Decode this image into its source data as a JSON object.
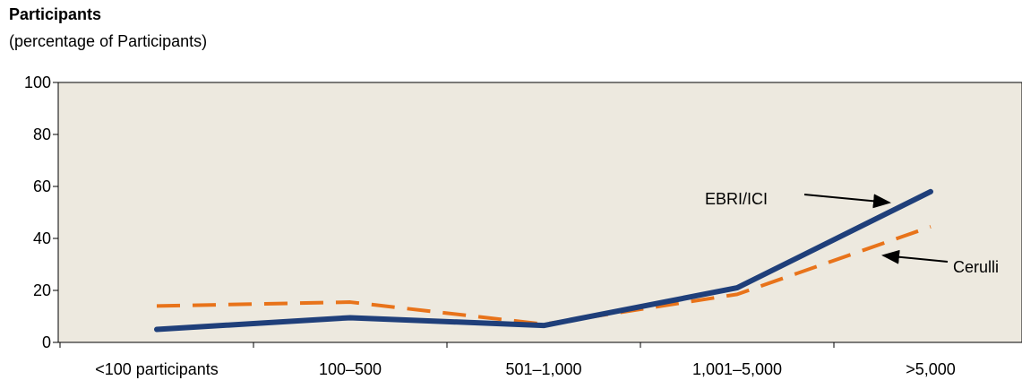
{
  "chart_data": {
    "type": "line",
    "title": "Participants",
    "subtitle": "(percentage of Participants)",
    "xlabel": "",
    "ylabel": "",
    "categories": [
      "<100 participants",
      "100–500",
      "501–1,000",
      "1,001–5,000",
      ">5,000"
    ],
    "ylim": [
      0,
      100
    ],
    "yticks": [
      "0",
      "20",
      "40",
      "60",
      "80",
      "100"
    ],
    "grid": false,
    "series": [
      {
        "name": "EBRI/ICI",
        "values": [
          5,
          9.5,
          6.5,
          21,
          58
        ],
        "color": "#1f3f7a",
        "style": "solid"
      },
      {
        "name": "Cerulli",
        "values": [
          14,
          15.5,
          7,
          18.5,
          44.5
        ],
        "color": "#e8731a",
        "style": "dashed"
      }
    ],
    "annotations": [
      {
        "text": "EBRI/ICI",
        "series": "EBRI/ICI"
      },
      {
        "text": "Cerulli",
        "series": "Cerulli"
      }
    ],
    "plot_background": "#ede9df"
  }
}
